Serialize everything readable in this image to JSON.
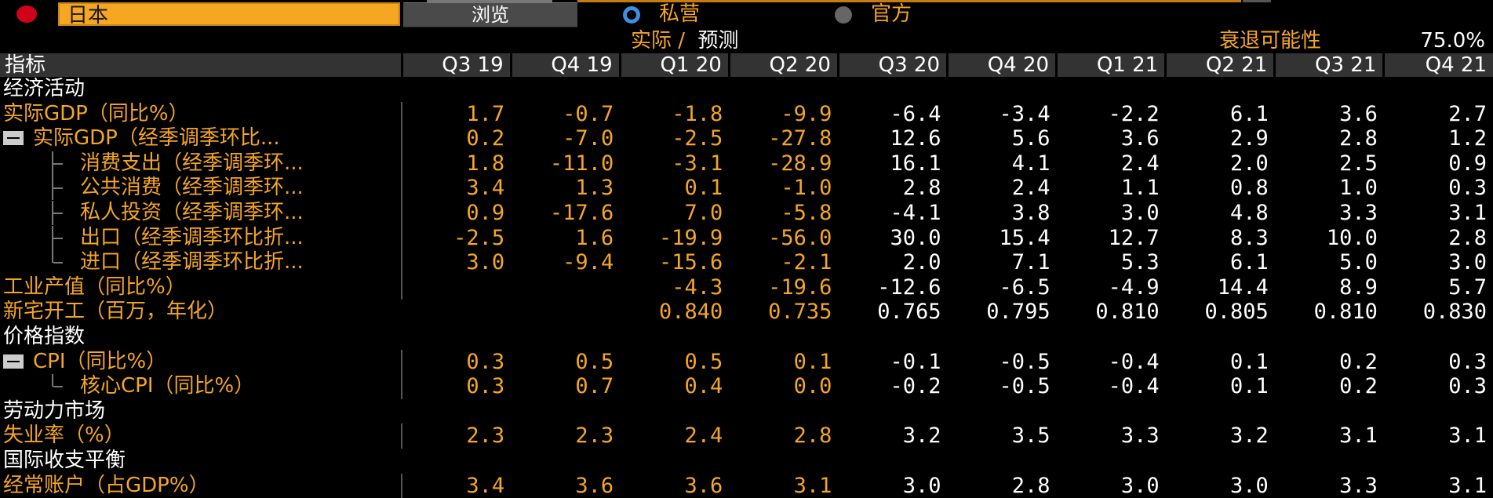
{
  "header": {
    "country": "日本",
    "browse_label": "浏览",
    "radio_private": "私营",
    "radio_official": "官方",
    "actual_label": "实际",
    "separator": "/",
    "forecast_label": "预测",
    "recession_label": "衰退可能性",
    "recession_value": "75.0%"
  },
  "table": {
    "indicator_header": "指标",
    "columns": [
      "Q3 19",
      "Q4 19",
      "Q1 20",
      "Q2 20",
      "Q3 20",
      "Q4 20",
      "Q1 21",
      "Q2 21",
      "Q3 21",
      "Q4 21"
    ],
    "rows": [
      {
        "label": "经济活动",
        "type": "section",
        "values": []
      },
      {
        "label": "实际GDP（同比%）",
        "type": "orange",
        "values": [
          "1.7",
          "-0.7",
          "-1.8",
          "-9.9",
          "-6.4",
          "-3.4",
          "-2.2",
          "6.1",
          "3.6",
          "2.7"
        ]
      },
      {
        "label": "实际GDP（经季调季环比...",
        "type": "orange-collapse",
        "values": [
          "0.2",
          "-7.0",
          "-2.5",
          "-27.8",
          "12.6",
          "5.6",
          "3.6",
          "2.9",
          "2.8",
          "1.2"
        ]
      },
      {
        "label": "消费支出（经季调季环...",
        "type": "orange-child",
        "values": [
          "1.8",
          "-11.0",
          "-3.1",
          "-28.9",
          "16.1",
          "4.1",
          "2.4",
          "2.0",
          "2.5",
          "0.9"
        ]
      },
      {
        "label": "公共消费（经季调季环...",
        "type": "orange-child",
        "values": [
          "3.4",
          "1.3",
          "0.1",
          "-1.0",
          "2.8",
          "2.4",
          "1.1",
          "0.8",
          "1.0",
          "0.3"
        ]
      },
      {
        "label": "私人投资（经季调季环...",
        "type": "orange-child",
        "values": [
          "0.9",
          "-17.6",
          "7.0",
          "-5.8",
          "-4.1",
          "3.8",
          "3.0",
          "4.8",
          "3.3",
          "3.1"
        ]
      },
      {
        "label": "出口（经季调季环比折...",
        "type": "orange-child",
        "values": [
          "-2.5",
          "1.6",
          "-19.9",
          "-56.0",
          "30.0",
          "15.4",
          "12.7",
          "8.3",
          "10.0",
          "2.8"
        ]
      },
      {
        "label": "进口（经季调季环比折...",
        "type": "orange-child-last",
        "values": [
          "3.0",
          "-9.4",
          "-15.6",
          "-2.1",
          "2.0",
          "7.1",
          "5.3",
          "6.1",
          "5.0",
          "3.0"
        ]
      },
      {
        "label": "工业产值（同比%）",
        "type": "orange",
        "values": [
          "",
          "",
          "-4.3",
          "-19.6",
          "-12.6",
          "-6.5",
          "-4.9",
          "14.4",
          "8.9",
          "5.7"
        ]
      },
      {
        "label": "新宅开工（百万，年化）",
        "type": "orange-nosep",
        "values": [
          "",
          "",
          "0.840",
          "0.735",
          "0.765",
          "0.795",
          "0.810",
          "0.805",
          "0.810",
          "0.830"
        ]
      },
      {
        "label": "价格指数",
        "type": "section",
        "values": []
      },
      {
        "label": "CPI（同比%）",
        "type": "orange-collapse",
        "values": [
          "0.3",
          "0.5",
          "0.5",
          "0.1",
          "-0.1",
          "-0.5",
          "-0.4",
          "0.1",
          "0.2",
          "0.3"
        ]
      },
      {
        "label": "核心CPI（同比%）",
        "type": "orange-child-last",
        "values": [
          "0.3",
          "0.7",
          "0.4",
          "0.0",
          "-0.2",
          "-0.5",
          "-0.4",
          "0.1",
          "0.2",
          "0.3"
        ]
      },
      {
        "label": "劳动力市场",
        "type": "section",
        "values": []
      },
      {
        "label": "失业率（%）",
        "type": "orange",
        "values": [
          "2.3",
          "2.3",
          "2.4",
          "2.8",
          "3.2",
          "3.5",
          "3.3",
          "3.2",
          "3.1",
          "3.1"
        ]
      },
      {
        "label": "国际收支平衡",
        "type": "section",
        "values": []
      },
      {
        "label": "经常账户（占GDP%）",
        "type": "orange",
        "values": [
          "3.4",
          "3.6",
          "3.6",
          "3.1",
          "3.0",
          "2.8",
          "3.0",
          "3.0",
          "3.3",
          "3.1"
        ]
      }
    ]
  },
  "colors": {
    "accent": "#f5a623",
    "background": "#000000",
    "header_bg": "#333333",
    "radio_selected": "#3d8fe6"
  }
}
